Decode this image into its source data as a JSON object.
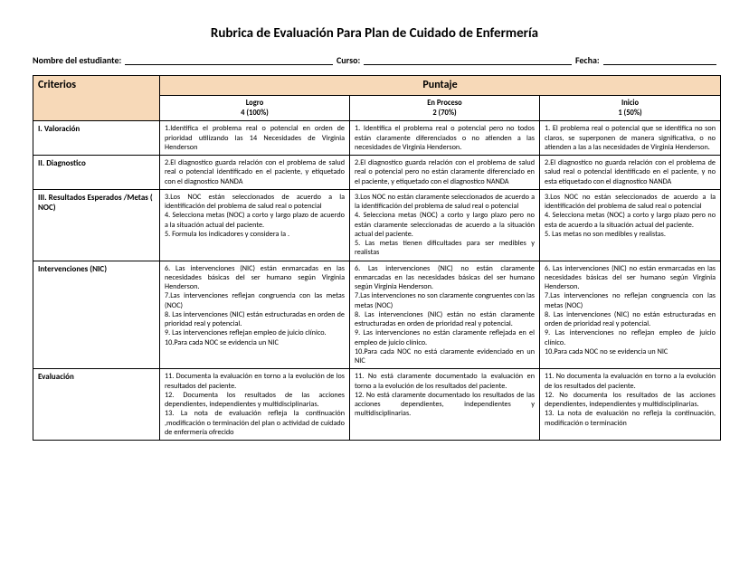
{
  "title": "Rubrica de Evaluación Para Plan de Cuidado de Enfermería",
  "header": {
    "student_label": "Nombre del estudiante:",
    "course_label": "Curso:",
    "date_label": "Fecha:"
  },
  "table": {
    "criterios_header": "Criterios",
    "puntaje_header": "Puntaje",
    "columns": [
      {
        "title": "Logro",
        "sub": "4 (100%)"
      },
      {
        "title": "En Proceso",
        "sub": "2  (70%)"
      },
      {
        "title": "Inicio",
        "sub": "1 (50%)"
      }
    ],
    "rows": [
      {
        "label": "I. Valoración",
        "c1": "1.Identifica el problema  real o potencial en orden de prioridad utilizando las 14 Necesidades de Virginia Henderson",
        "c2": "1. Identifica el problema  real o potencial pero no todos están claramente diferenciados o no atienden a las necesidades de Virginia Henderson.",
        "c3": "1. El problema  real o potencial que se identifica no son claros, se superponen de manera significativa, o no atienden a las a las necesidades de Virginia Henderson."
      },
      {
        "label": "II. Diagnostico",
        "c1": "2.El diagnostico guarda relación  con el problema de salud real o potencial  identificado en el paciente, y etiquetado con el diagnostico NANDA",
        "c2": "2.El diagnostico guarda relación  con el problema de salud real o potencial pero no están claramente diferenciado en el paciente, y etiquetado con el diagnostico NANDA",
        "c3": "2.El diagnostico no guarda relación  con el problema  de  salud  real  o  potencial  identificado en el paciente, y  no esta etiquetado con el diagnostico NANDA"
      },
      {
        "label": "III. Resultados Esperados /Metas ( NOC)",
        "c1": "3.Los NOC están seleccionados de acuerdo a la identificación del problema de salud real o potencial\n4. Selecciona metas (NOC) a corto y largo plazo de acuerdo a la situación actual del paciente.\n5. Formula los indicadores y considera la .",
        "c2": "3.Los NOC no están  claramente seleccionados de acuerdo a la identificación del problema de salud real o potencial\n4. Selecciona metas (NOC) a corto y largo plazo pero no están claramente seleccionadas de acuerdo a la situación actual del paciente.\n5. Las metas tienen dificultades para  ser medibles y realistas",
        "c3": "3.Los NOC no están seleccionados de acuerdo a la identificación del problema de salud real o potencial\n4. Selecciona metas (NOC) a corto y largo plazo pero no esta de acuerdo a la situación actual del paciente.\n5. Las metas no son medibles y realistas."
      },
      {
        "label": "Intervenciones     (NIC)",
        "c1": "6. Las intervenciones (NIC) están enmarcadas en las necesidades básicas del ser humano según Virginia Henderson.\n7.Las intervenciones reflejan congruencia con las metas (NOC)\n8. Las intervenciones (NIC) están estructuradas en orden de prioridad real y potencial.\n9. Las intervenciones  reflejan empleo de juicio clínico.\n10.Para cada NOC se evidencia un  NIC",
        "c2": "6. Las intervenciones (NIC) no están claramente enmarcadas en las necesidades básicas del ser humano según Virginia Henderson.\n7.Las intervenciones no son claramente congruentes con las metas (NOC)\n8. Las intervenciones (NIC) están no están claramente estructuradas en orden de prioridad real y potencial.\n9. Las intervenciones no están claramente  reflejada en el  empleo de juicio clínico.\n10.Para cada NOC no está claramente  evidenciado en un  NIC",
        "c3": "6. Las intervenciones (NIC) no están enmarcadas en las necesidades básicas del ser humano según Virginia Henderson.\n7.Las intervenciones no reflejan congruencia con las metas (NOC)\n8. Las intervenciones (NIC)  no están estructuradas en orden de prioridad real y potencial.\n9. Las intervenciones no reflejan empleo de juicio clínico.\n10.Para cada NOC no se evidencia un  NIC"
      },
      {
        "label": "Evaluación",
        "c1": "11. Documenta la evaluación en torno a la evolución de los resultados del paciente.\n12. Documenta los resultados de las acciones dependientes, independientes y multidisciplinarias.\n13. La nota de evaluación  refleja la continuación ,modificación o terminación del plan o actividad de cuidado de enfermería ofrecido",
        "c2": "11. No está claramente documentado la evaluación en torno a la evolución de los resultados del paciente.\n12. No está claramente documentado los resultados de las acciones dependientes, independientes y multidisciplinarias.",
        "c3": "11. No documenta la evaluación en torno a la evolución de los resultados del paciente.\n12. No documenta los resultados de las acciones dependientes, independientes y multidisciplinarias.\n13. La nota de evaluación no refleja la continuación, modificación o terminación"
      }
    ]
  }
}
